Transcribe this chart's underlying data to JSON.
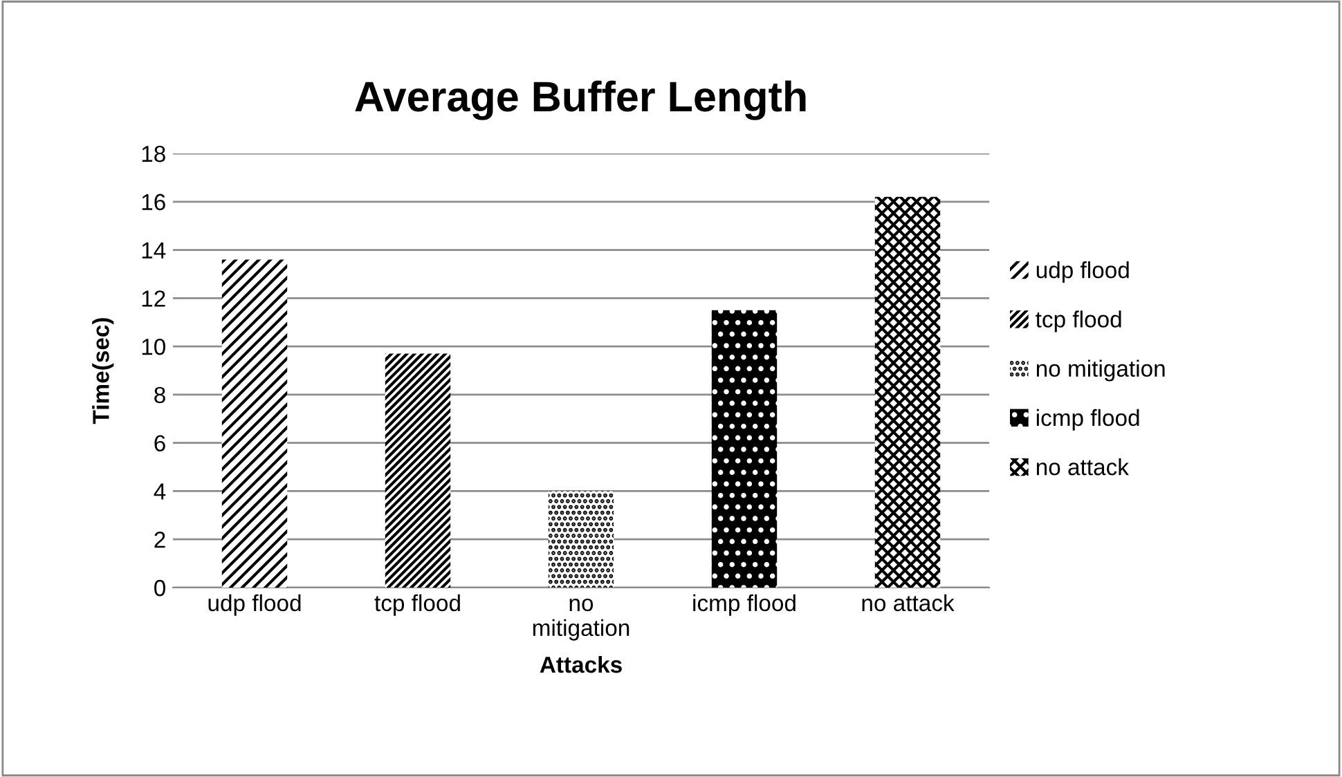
{
  "chart_data": {
    "type": "bar",
    "title": "Average Buffer Length",
    "xlabel": "Attacks",
    "ylabel": "Time(sec)",
    "categories": [
      "udp flood",
      "tcp flood",
      "no\nmitigation",
      "icmp flood",
      "no attack"
    ],
    "series": [
      {
        "name": "udp flood",
        "color": "#000000",
        "values": [
          13.6,
          null,
          null,
          null,
          null
        ]
      },
      {
        "name": "tcp flood",
        "color": "#000000",
        "values": [
          null,
          9.7,
          null,
          null,
          null
        ]
      },
      {
        "name": "no mitigation",
        "color": "#000000",
        "values": [
          null,
          null,
          4.0,
          null,
          null
        ]
      },
      {
        "name": "icmp flood",
        "color": "#000000",
        "values": [
          null,
          null,
          null,
          11.5,
          null
        ]
      },
      {
        "name": "no attack",
        "color": "#000000",
        "values": [
          null,
          null,
          null,
          null,
          16.2
        ]
      }
    ],
    "ylim": [
      0,
      18
    ],
    "yticks": [
      0,
      2,
      4,
      6,
      8,
      10,
      12,
      14,
      16,
      18
    ],
    "grid": "y",
    "legend": "right"
  }
}
